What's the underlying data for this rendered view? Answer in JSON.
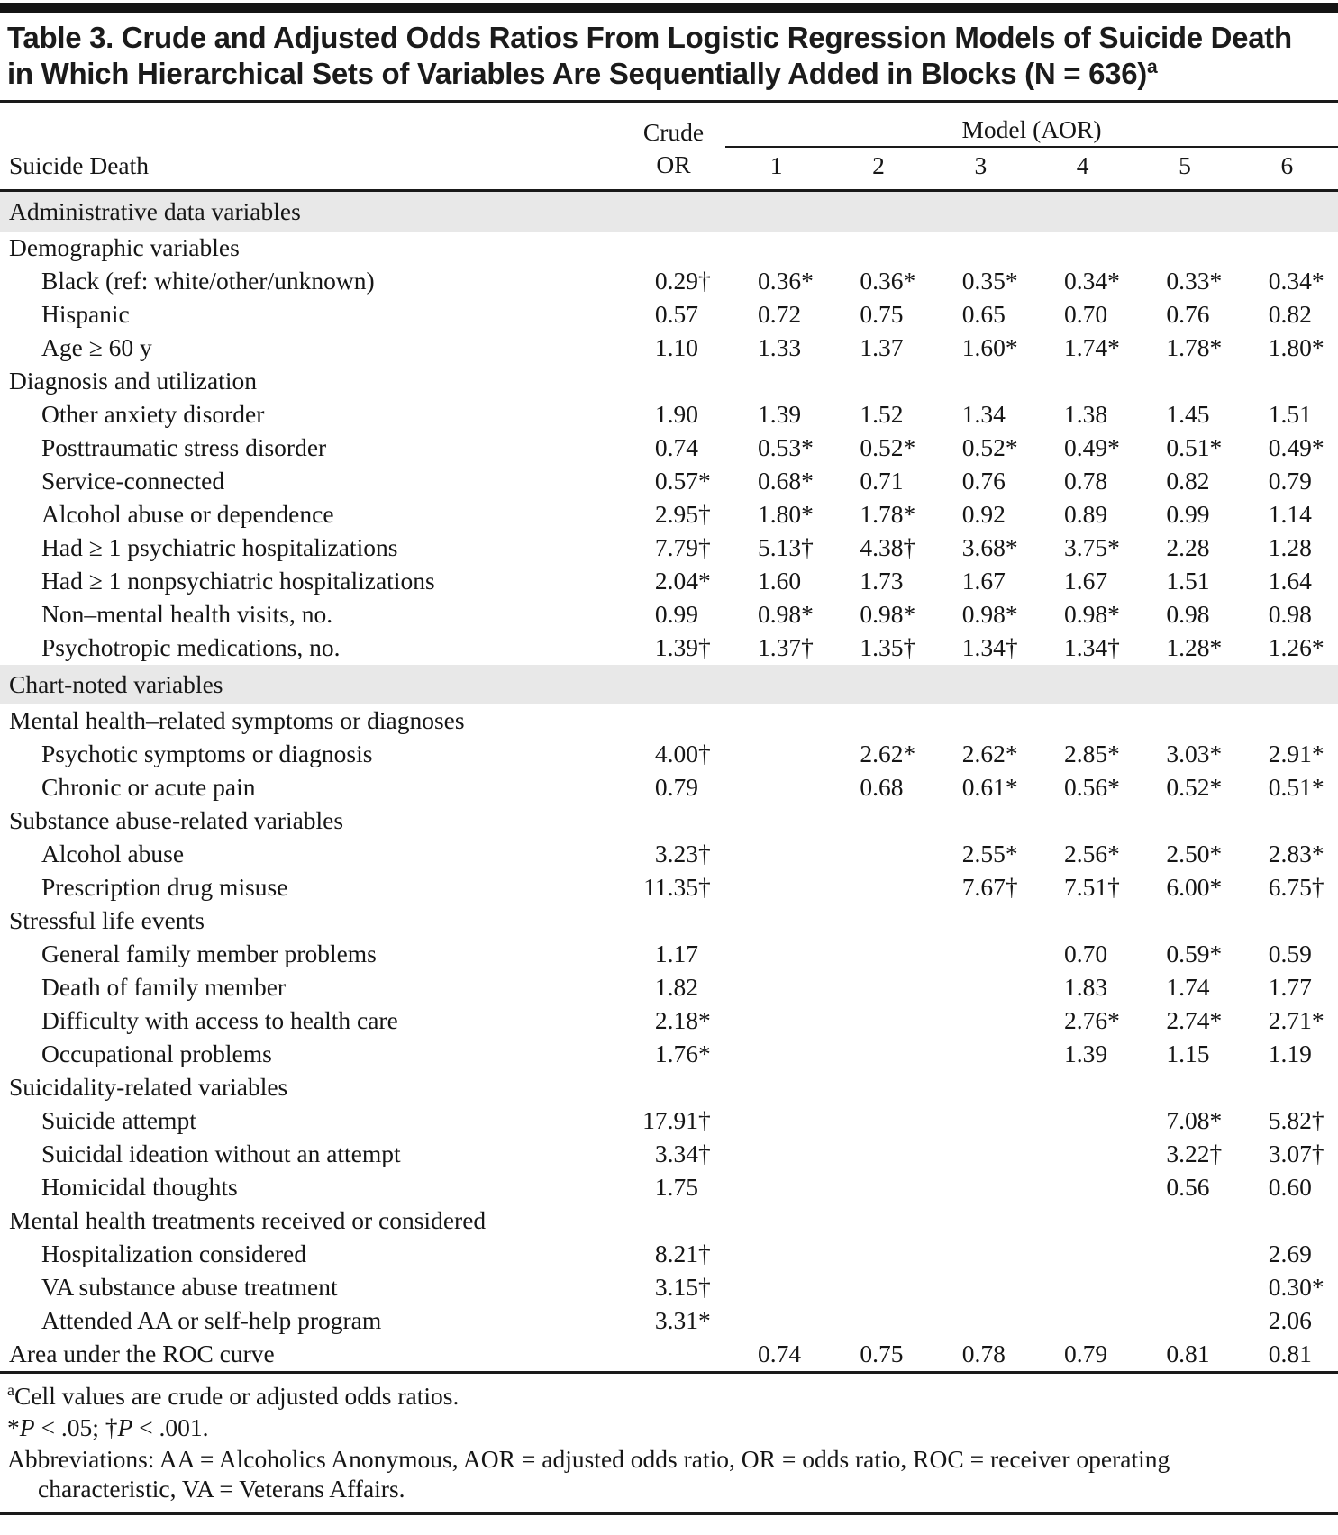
{
  "title": {
    "line1": "Table 3. Crude and Adjusted Odds Ratios From Logistic Regression Models of Suicide Death",
    "line2": "in Which Hierarchical Sets of Variables Are Sequentially Added in Blocks (N = 636)",
    "superscript": "a"
  },
  "header": {
    "row_label": "Suicide Death",
    "crude_line1": "Crude",
    "crude_line2": "OR",
    "model_group": "Model (AOR)",
    "model_columns": [
      "1",
      "2",
      "3",
      "4",
      "5",
      "6"
    ]
  },
  "table": {
    "rows": [
      {
        "type": "section",
        "label": "Administrative data variables"
      },
      {
        "type": "sub",
        "label": "Demographic variables"
      },
      {
        "type": "item",
        "label": "Black (ref: white/other/unknown)",
        "values": [
          "0.29†",
          "0.36*",
          "0.36*",
          "0.35*",
          "0.34*",
          "0.33*",
          "0.34*"
        ]
      },
      {
        "type": "item",
        "label": "Hispanic",
        "values": [
          "0.57",
          "0.72",
          "0.75",
          "0.65",
          "0.70",
          "0.76",
          "0.82"
        ]
      },
      {
        "type": "item",
        "label": "Age ≥ 60 y",
        "values": [
          "1.10",
          "1.33",
          "1.37",
          "1.60*",
          "1.74*",
          "1.78*",
          "1.80*"
        ]
      },
      {
        "type": "sub",
        "label": "Diagnosis and utilization"
      },
      {
        "type": "item",
        "label": "Other anxiety disorder",
        "values": [
          "1.90",
          "1.39",
          "1.52",
          "1.34",
          "1.38",
          "1.45",
          "1.51"
        ]
      },
      {
        "type": "item",
        "label": "Posttraumatic stress disorder",
        "values": [
          "0.74",
          "0.53*",
          "0.52*",
          "0.52*",
          "0.49*",
          "0.51*",
          "0.49*"
        ]
      },
      {
        "type": "item",
        "label": "Service-connected",
        "values": [
          "0.57*",
          "0.68*",
          "0.71",
          "0.76",
          "0.78",
          "0.82",
          "0.79"
        ]
      },
      {
        "type": "item",
        "label": "Alcohol abuse or dependence",
        "values": [
          "2.95†",
          "1.80*",
          "1.78*",
          "0.92",
          "0.89",
          "0.99",
          "1.14"
        ]
      },
      {
        "type": "item",
        "label": "Had ≥ 1 psychiatric hospitalizations",
        "values": [
          "7.79†",
          "5.13†",
          "4.38†",
          "3.68*",
          "3.75*",
          "2.28",
          "1.28"
        ]
      },
      {
        "type": "item",
        "label": "Had ≥ 1 nonpsychiatric hospitalizations",
        "values": [
          "2.04*",
          "1.60",
          "1.73",
          "1.67",
          "1.67",
          "1.51",
          "1.64"
        ]
      },
      {
        "type": "item",
        "label": "Non–mental health visits, no.",
        "values": [
          "0.99",
          "0.98*",
          "0.98*",
          "0.98*",
          "0.98*",
          "0.98",
          "0.98"
        ]
      },
      {
        "type": "item",
        "label": "Psychotropic medications, no.",
        "values": [
          "1.39†",
          "1.37†",
          "1.35†",
          "1.34†",
          "1.34†",
          "1.28*",
          "1.26*"
        ]
      },
      {
        "type": "section",
        "label": "Chart-noted variables"
      },
      {
        "type": "sub",
        "label": "Mental health–related symptoms or diagnoses"
      },
      {
        "type": "item",
        "label": "Psychotic symptoms or diagnosis",
        "values": [
          "4.00†",
          "",
          "2.62*",
          "2.62*",
          "2.85*",
          "3.03*",
          "2.91*"
        ]
      },
      {
        "type": "item",
        "label": "Chronic or acute pain",
        "values": [
          "0.79",
          "",
          "0.68",
          "0.61*",
          "0.56*",
          "0.52*",
          "0.51*"
        ]
      },
      {
        "type": "sub",
        "label": "Substance abuse-related variables"
      },
      {
        "type": "item",
        "label": "Alcohol abuse",
        "values": [
          "3.23†",
          "",
          "",
          "2.55*",
          "2.56*",
          "2.50*",
          "2.83*"
        ]
      },
      {
        "type": "item",
        "label": "Prescription drug misuse",
        "values": [
          "11.35†",
          "",
          "",
          "7.67†",
          "7.51†",
          "6.00*",
          "6.75†"
        ]
      },
      {
        "type": "sub",
        "label": "Stressful life events"
      },
      {
        "type": "item",
        "label": "General family member problems",
        "values": [
          "1.17",
          "",
          "",
          "",
          "0.70",
          "0.59*",
          "0.59"
        ]
      },
      {
        "type": "item",
        "label": "Death of family member",
        "values": [
          "1.82",
          "",
          "",
          "",
          "1.83",
          "1.74",
          "1.77"
        ]
      },
      {
        "type": "item",
        "label": "Difficulty with access to health care",
        "values": [
          "2.18*",
          "",
          "",
          "",
          "2.76*",
          "2.74*",
          "2.71*"
        ]
      },
      {
        "type": "item",
        "label": "Occupational problems",
        "values": [
          "1.76*",
          "",
          "",
          "",
          "1.39",
          "1.15",
          "1.19"
        ]
      },
      {
        "type": "sub",
        "label": "Suicidality-related variables"
      },
      {
        "type": "item",
        "label": "Suicide attempt",
        "values": [
          "17.91†",
          "",
          "",
          "",
          "",
          "7.08*",
          "5.82†"
        ]
      },
      {
        "type": "item",
        "label": "Suicidal ideation without an attempt",
        "values": [
          "3.34†",
          "",
          "",
          "",
          "",
          "3.22†",
          "3.07†"
        ]
      },
      {
        "type": "item",
        "label": "Homicidal thoughts",
        "values": [
          "1.75",
          "",
          "",
          "",
          "",
          "0.56",
          "0.60"
        ]
      },
      {
        "type": "sub",
        "label": "Mental health treatments received or considered"
      },
      {
        "type": "item",
        "label": "Hospitalization considered",
        "values": [
          "8.21†",
          "",
          "",
          "",
          "",
          "",
          "2.69"
        ]
      },
      {
        "type": "item",
        "label": "VA substance abuse treatment",
        "values": [
          "3.15†",
          "",
          "",
          "",
          "",
          "",
          "0.30*"
        ]
      },
      {
        "type": "item",
        "label": "Attended AA or self-help program",
        "values": [
          "3.31*",
          "",
          "",
          "",
          "",
          "",
          "2.06"
        ]
      },
      {
        "type": "total",
        "label": "Area under the ROC curve",
        "values": [
          "",
          "0.74",
          "0.75",
          "0.78",
          "0.79",
          "0.81",
          "0.81"
        ]
      }
    ]
  },
  "footnotes": {
    "a_sup": "a",
    "a_text": "Cell values are crude or adjusted odds ratios.",
    "sig_star": "*",
    "sig_p1": "P",
    "sig_mid": " < .05; †",
    "sig_p2": "P",
    "sig_end": " < .001.",
    "abbreviations": "Abbreviations: AA = Alcoholics Anonymous, AOR = adjusted odds ratio, OR = odds ratio, ROC = receiver operating characteristic, VA = Veterans Affairs."
  },
  "colors": {
    "section_band": "#e8e8e8",
    "rule": "#1a1a1a",
    "text": "#161616"
  }
}
